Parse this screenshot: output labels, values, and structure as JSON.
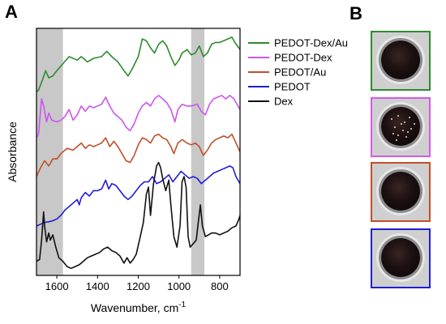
{
  "panel_labels": {
    "a": "A",
    "b": "B"
  },
  "chart_data": {
    "type": "line",
    "xlabel": "Wavenumber, cm",
    "xlabel_superscript": "-1",
    "ylabel": "Absorbance",
    "xlim": [
      1700,
      700
    ],
    "x_reversed": true,
    "x_ticks": [
      1600,
      1400,
      1200,
      1000,
      800
    ],
    "y_ticks_shown": false,
    "legend_position": "top-right",
    "shaded_regions": [
      {
        "x_range": [
          1700,
          1570
        ],
        "color": "#c8c8c8"
      },
      {
        "x_range": [
          940,
          875
        ],
        "color": "#c8c8c8"
      }
    ],
    "series": [
      {
        "name": "PEDOT-Dex/Au",
        "color": "#2e8b2e",
        "offset": 4.6,
        "points": [
          [
            1700,
            0.1
          ],
          [
            1690,
            0.15
          ],
          [
            1670,
            0.45
          ],
          [
            1655,
            0.7
          ],
          [
            1640,
            0.5
          ],
          [
            1620,
            0.55
          ],
          [
            1600,
            0.7
          ],
          [
            1570,
            0.9
          ],
          [
            1540,
            1.1
          ],
          [
            1500,
            1.0
          ],
          [
            1480,
            1.1
          ],
          [
            1450,
            0.95
          ],
          [
            1420,
            1.05
          ],
          [
            1380,
            1.1
          ],
          [
            1355,
            1.25
          ],
          [
            1330,
            1.1
          ],
          [
            1300,
            0.95
          ],
          [
            1270,
            0.7
          ],
          [
            1250,
            0.55
          ],
          [
            1230,
            0.75
          ],
          [
            1200,
            1.1
          ],
          [
            1180,
            1.6
          ],
          [
            1160,
            1.55
          ],
          [
            1140,
            1.35
          ],
          [
            1120,
            1.2
          ],
          [
            1100,
            1.45
          ],
          [
            1080,
            1.55
          ],
          [
            1060,
            1.4
          ],
          [
            1040,
            1.1
          ],
          [
            1020,
            0.85
          ],
          [
            1000,
            1.0
          ],
          [
            985,
            1.2
          ],
          [
            960,
            1.3
          ],
          [
            940,
            1.15
          ],
          [
            920,
            1.2
          ],
          [
            900,
            1.4
          ],
          [
            880,
            1.1
          ],
          [
            860,
            1.2
          ],
          [
            840,
            1.45
          ],
          [
            820,
            1.5
          ],
          [
            800,
            1.5
          ],
          [
            780,
            1.55
          ],
          [
            760,
            1.6
          ],
          [
            740,
            1.65
          ],
          [
            725,
            1.5
          ],
          [
            700,
            1.3
          ]
        ]
      },
      {
        "name": "PEDOT-Dex",
        "color": "#cc55ee",
        "offset": 3.3,
        "points": [
          [
            1700,
            0.1
          ],
          [
            1690,
            0.2
          ],
          [
            1675,
            1.2
          ],
          [
            1665,
            1.0
          ],
          [
            1650,
            0.55
          ],
          [
            1640,
            0.8
          ],
          [
            1625,
            0.6
          ],
          [
            1600,
            0.55
          ],
          [
            1580,
            0.6
          ],
          [
            1560,
            0.7
          ],
          [
            1540,
            0.9
          ],
          [
            1520,
            0.6
          ],
          [
            1500,
            0.75
          ],
          [
            1480,
            1.0
          ],
          [
            1460,
            0.85
          ],
          [
            1440,
            1.0
          ],
          [
            1420,
            0.95
          ],
          [
            1400,
            1.0
          ],
          [
            1380,
            1.05
          ],
          [
            1360,
            1.25
          ],
          [
            1340,
            1.0
          ],
          [
            1320,
            0.8
          ],
          [
            1300,
            0.7
          ],
          [
            1280,
            0.6
          ],
          [
            1260,
            0.4
          ],
          [
            1240,
            0.3
          ],
          [
            1220,
            0.5
          ],
          [
            1200,
            0.8
          ],
          [
            1180,
            1.0
          ],
          [
            1160,
            1.1
          ],
          [
            1140,
            1.0
          ],
          [
            1120,
            1.2
          ],
          [
            1100,
            1.3
          ],
          [
            1080,
            1.2
          ],
          [
            1060,
            1.1
          ],
          [
            1040,
            0.9
          ],
          [
            1020,
            0.55
          ],
          [
            1005,
            0.9
          ],
          [
            985,
            1.05
          ],
          [
            960,
            1.0
          ],
          [
            940,
            1.0
          ],
          [
            910,
            1.05
          ],
          [
            890,
            0.85
          ],
          [
            870,
            0.75
          ],
          [
            850,
            1.05
          ],
          [
            830,
            1.2
          ],
          [
            810,
            1.25
          ],
          [
            790,
            1.3
          ],
          [
            770,
            1.2
          ],
          [
            750,
            1.3
          ],
          [
            730,
            1.2
          ],
          [
            710,
            1.0
          ],
          [
            700,
            0.9
          ]
        ]
      },
      {
        "name": "PEDOT/Au",
        "color": "#c0502a",
        "offset": 2.2,
        "points": [
          [
            1700,
            0.1
          ],
          [
            1680,
            0.35
          ],
          [
            1660,
            0.55
          ],
          [
            1640,
            0.4
          ],
          [
            1620,
            0.6
          ],
          [
            1600,
            0.6
          ],
          [
            1580,
            0.75
          ],
          [
            1550,
            0.9
          ],
          [
            1520,
            0.85
          ],
          [
            1500,
            0.95
          ],
          [
            1480,
            1.05
          ],
          [
            1460,
            0.9
          ],
          [
            1440,
            1.0
          ],
          [
            1420,
            0.95
          ],
          [
            1400,
            1.0
          ],
          [
            1380,
            1.05
          ],
          [
            1360,
            1.2
          ],
          [
            1340,
            0.95
          ],
          [
            1320,
            1.1
          ],
          [
            1300,
            0.95
          ],
          [
            1280,
            0.75
          ],
          [
            1260,
            0.55
          ],
          [
            1240,
            0.5
          ],
          [
            1220,
            0.7
          ],
          [
            1200,
            1.0
          ],
          [
            1180,
            1.2
          ],
          [
            1160,
            1.15
          ],
          [
            1140,
            1.05
          ],
          [
            1120,
            1.25
          ],
          [
            1100,
            1.3
          ],
          [
            1080,
            1.2
          ],
          [
            1060,
            1.15
          ],
          [
            1040,
            0.95
          ],
          [
            1025,
            0.75
          ],
          [
            1005,
            1.05
          ],
          [
            985,
            1.15
          ],
          [
            960,
            1.05
          ],
          [
            940,
            1.0
          ],
          [
            920,
            1.05
          ],
          [
            900,
            0.95
          ],
          [
            880,
            0.7
          ],
          [
            860,
            0.85
          ],
          [
            840,
            1.05
          ],
          [
            820,
            1.15
          ],
          [
            800,
            1.2
          ],
          [
            780,
            1.25
          ],
          [
            760,
            1.2
          ],
          [
            740,
            1.3
          ],
          [
            720,
            1.05
          ],
          [
            700,
            0.8
          ]
        ]
      },
      {
        "name": "PEDOT",
        "color": "#1f1fd6",
        "offset": 0.9,
        "points": [
          [
            1700,
            0.0
          ],
          [
            1680,
            0.05
          ],
          [
            1660,
            0.1
          ],
          [
            1640,
            0.12
          ],
          [
            1620,
            0.15
          ],
          [
            1600,
            0.2
          ],
          [
            1580,
            0.3
          ],
          [
            1560,
            0.45
          ],
          [
            1540,
            0.55
          ],
          [
            1520,
            0.65
          ],
          [
            1500,
            0.75
          ],
          [
            1490,
            0.6
          ],
          [
            1480,
            0.8
          ],
          [
            1460,
            0.95
          ],
          [
            1440,
            0.85
          ],
          [
            1420,
            1.0
          ],
          [
            1400,
            1.0
          ],
          [
            1380,
            1.05
          ],
          [
            1360,
            1.3
          ],
          [
            1345,
            1.05
          ],
          [
            1330,
            1.2
          ],
          [
            1310,
            1.15
          ],
          [
            1290,
            1.0
          ],
          [
            1270,
            0.85
          ],
          [
            1250,
            0.75
          ],
          [
            1230,
            0.85
          ],
          [
            1210,
            1.0
          ],
          [
            1190,
            1.15
          ],
          [
            1170,
            1.25
          ],
          [
            1150,
            1.25
          ],
          [
            1130,
            1.4
          ],
          [
            1110,
            1.2
          ],
          [
            1090,
            1.25
          ],
          [
            1070,
            1.35
          ],
          [
            1050,
            1.45
          ],
          [
            1030,
            1.25
          ],
          [
            1010,
            1.4
          ],
          [
            990,
            1.55
          ],
          [
            970,
            1.45
          ],
          [
            950,
            1.35
          ],
          [
            930,
            1.4
          ],
          [
            910,
            1.35
          ],
          [
            890,
            1.2
          ],
          [
            870,
            1.3
          ],
          [
            850,
            1.4
          ],
          [
            830,
            1.5
          ],
          [
            810,
            1.55
          ],
          [
            790,
            1.6
          ],
          [
            770,
            1.65
          ],
          [
            750,
            1.7
          ],
          [
            735,
            1.65
          ],
          [
            720,
            1.4
          ],
          [
            700,
            1.2
          ]
        ]
      },
      {
        "name": "Dex",
        "color": "#111111",
        "offset": -0.3,
        "points": [
          [
            1700,
            0.2
          ],
          [
            1685,
            0.25
          ],
          [
            1675,
            0.8
          ],
          [
            1665,
            1.6
          ],
          [
            1660,
            1.2
          ],
          [
            1650,
            0.75
          ],
          [
            1640,
            1.0
          ],
          [
            1632,
            0.8
          ],
          [
            1620,
            0.95
          ],
          [
            1605,
            0.6
          ],
          [
            1590,
            0.3
          ],
          [
            1570,
            0.2
          ],
          [
            1550,
            0.05
          ],
          [
            1530,
            0.0
          ],
          [
            1510,
            0.05
          ],
          [
            1490,
            0.1
          ],
          [
            1470,
            0.2
          ],
          [
            1450,
            0.3
          ],
          [
            1430,
            0.35
          ],
          [
            1410,
            0.4
          ],
          [
            1390,
            0.45
          ],
          [
            1370,
            0.55
          ],
          [
            1350,
            0.6
          ],
          [
            1330,
            0.5
          ],
          [
            1310,
            0.45
          ],
          [
            1290,
            0.35
          ],
          [
            1270,
            0.15
          ],
          [
            1255,
            0.3
          ],
          [
            1240,
            0.15
          ],
          [
            1225,
            0.25
          ],
          [
            1210,
            0.4
          ],
          [
            1190,
            0.9
          ],
          [
            1175,
            1.3
          ],
          [
            1160,
            2.1
          ],
          [
            1150,
            2.3
          ],
          [
            1140,
            1.5
          ],
          [
            1125,
            2.4
          ],
          [
            1110,
            2.9
          ],
          [
            1100,
            3.0
          ],
          [
            1090,
            2.85
          ],
          [
            1080,
            2.55
          ],
          [
            1065,
            2.2
          ],
          [
            1050,
            2.5
          ],
          [
            1040,
            1.8
          ],
          [
            1025,
            0.9
          ],
          [
            1010,
            0.6
          ],
          [
            995,
            1.2
          ],
          [
            985,
            2.45
          ],
          [
            975,
            2.6
          ],
          [
            965,
            2.3
          ],
          [
            955,
            0.9
          ],
          [
            945,
            0.6
          ],
          [
            930,
            0.7
          ],
          [
            915,
            0.8
          ],
          [
            905,
            1.3
          ],
          [
            895,
            1.8
          ],
          [
            885,
            1.2
          ],
          [
            870,
            0.9
          ],
          [
            855,
            0.95
          ],
          [
            840,
            1.0
          ],
          [
            820,
            1.0
          ],
          [
            800,
            0.95
          ],
          [
            780,
            1.0
          ],
          [
            760,
            1.05
          ],
          [
            740,
            1.15
          ],
          [
            720,
            1.2
          ],
          [
            705,
            1.4
          ],
          [
            700,
            1.5
          ]
        ]
      }
    ]
  },
  "photos": [
    {
      "name": "pedot-dex-au-electrode-photo",
      "border_color": "#2e8b2e"
    },
    {
      "name": "pedot-dex-electrode-photo",
      "border_color": "#d45ae8"
    },
    {
      "name": "pedot-au-electrode-photo",
      "border_color": "#c0502a"
    },
    {
      "name": "pedot-electrode-photo",
      "border_color": "#1f1fd6"
    }
  ]
}
